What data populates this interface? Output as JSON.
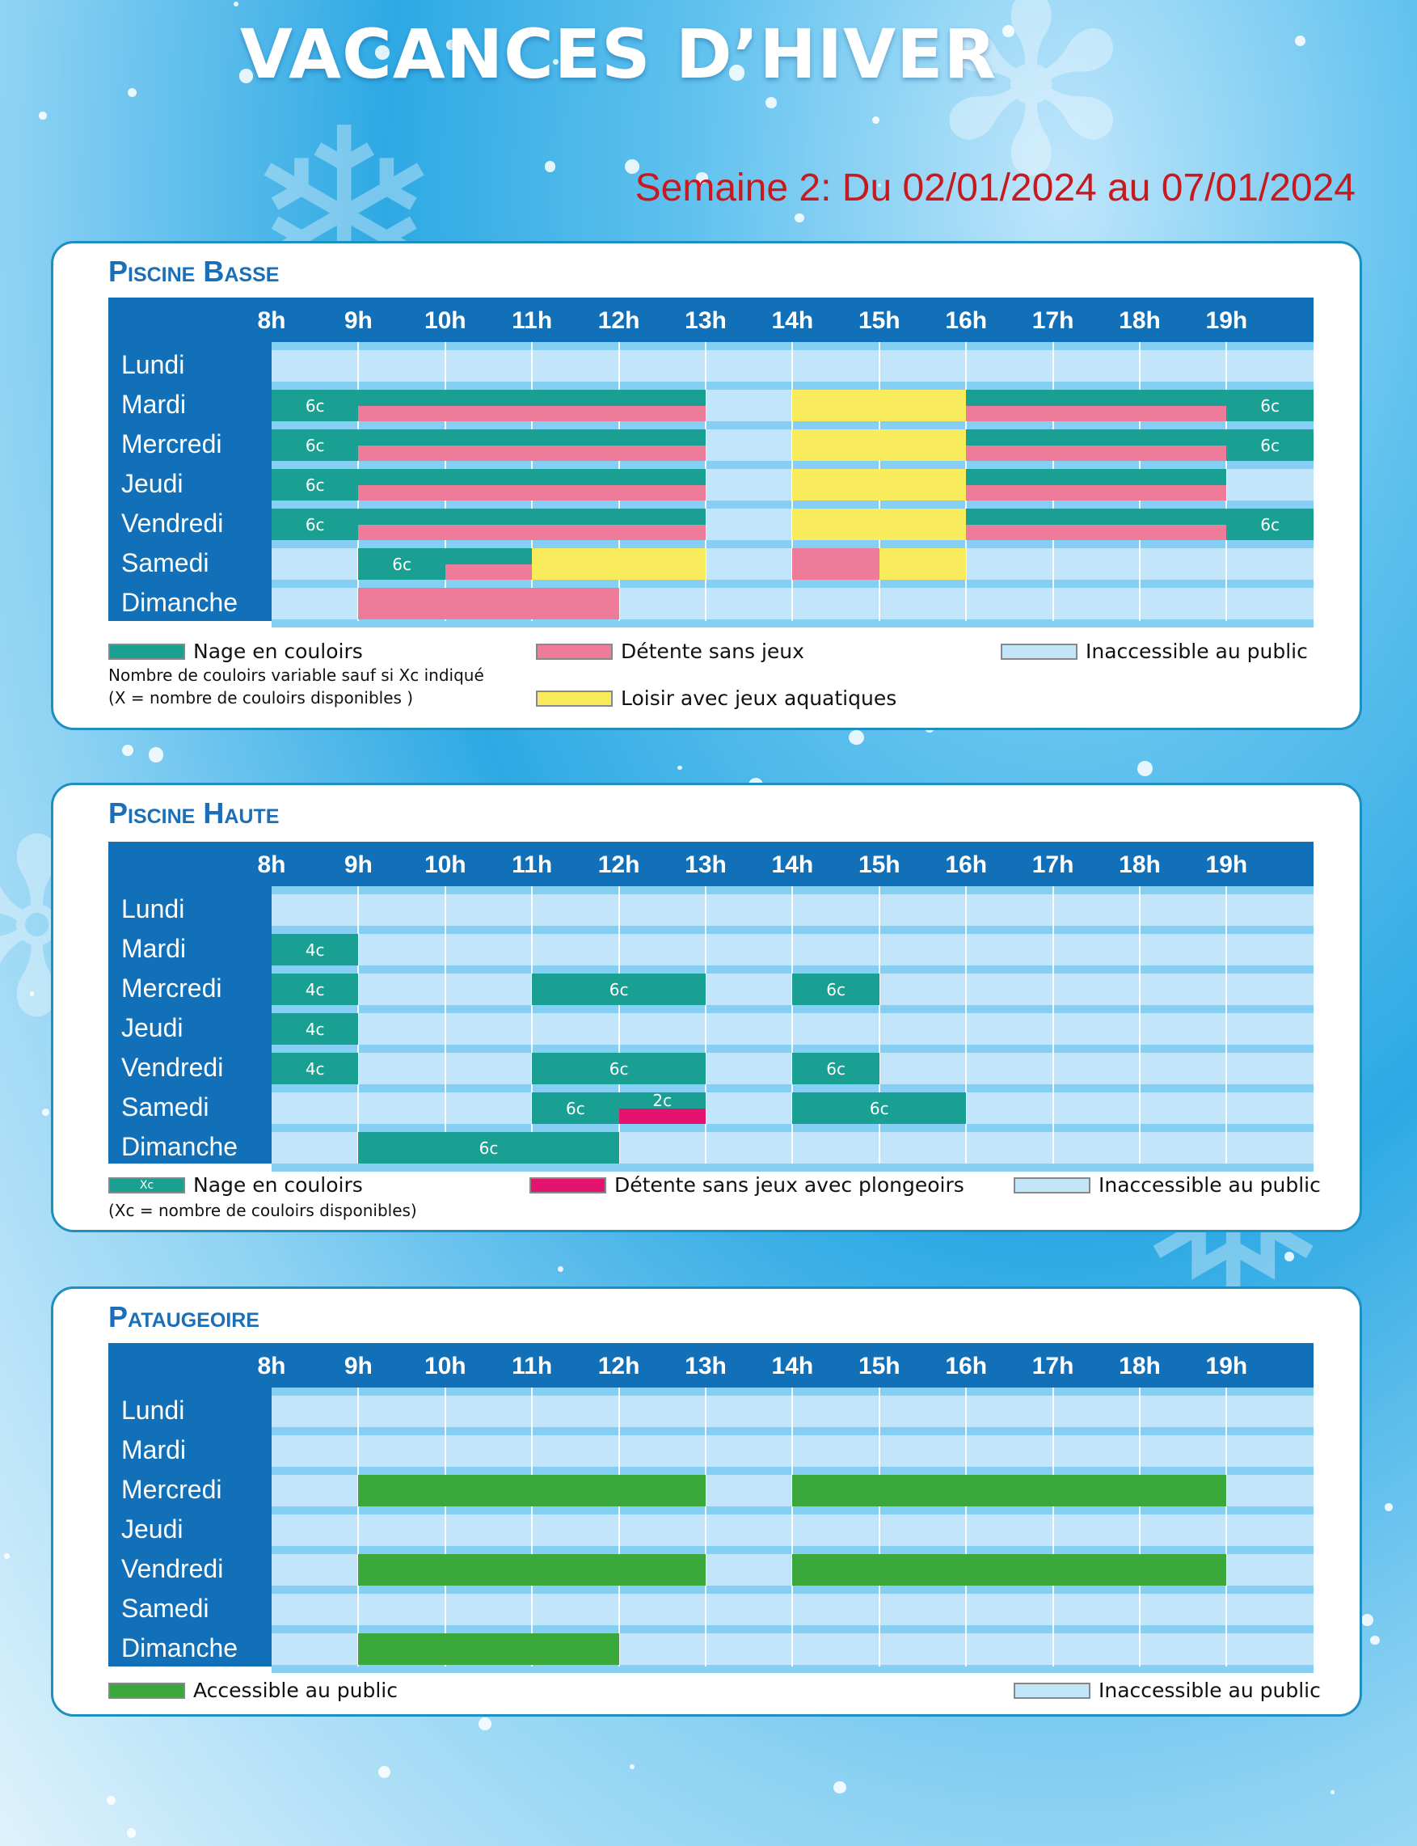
{
  "title": "VACANCES D’HIVER",
  "subtitle": "Semaine 2: Du 02/01/2024 au 07/01/2024",
  "hours": [
    "8h",
    "9h",
    "10h",
    "11h",
    "12h",
    "13h",
    "14h",
    "15h",
    "16h",
    "17h",
    "18h",
    "19h"
  ],
  "days": [
    "Lundi",
    "Mardi",
    "Mercredi",
    "Jeudi",
    "Vendredi",
    "Samedi",
    "Dimanche"
  ],
  "colors": {
    "nage": "#19a093",
    "detente": "#ef7b9a",
    "loisir": "#f8ec5c",
    "plongeoirs": "#e3136e",
    "accessible": "#3aa83a",
    "inaccessible": "#c3e5fa"
  },
  "pools": [
    {
      "name": "Piscine Basse",
      "schedule": [
        [],
        [
          {
            "s": 8,
            "e": 9,
            "t": "nage",
            "l": "6c"
          },
          {
            "s": 9,
            "e": 13,
            "t": "nage",
            "h": "top"
          },
          {
            "s": 9,
            "e": 13,
            "t": "detente",
            "h": "bottom"
          },
          {
            "s": 14,
            "e": 16,
            "t": "loisir"
          },
          {
            "s": 16,
            "e": 19,
            "t": "nage",
            "h": "top"
          },
          {
            "s": 16,
            "e": 19,
            "t": "detente",
            "h": "bottom"
          },
          {
            "s": 19,
            "e": 20,
            "t": "nage",
            "l": "6c"
          }
        ],
        [
          {
            "s": 8,
            "e": 9,
            "t": "nage",
            "l": "6c"
          },
          {
            "s": 9,
            "e": 13,
            "t": "nage",
            "h": "top"
          },
          {
            "s": 9,
            "e": 13,
            "t": "detente",
            "h": "bottom"
          },
          {
            "s": 14,
            "e": 16,
            "t": "loisir"
          },
          {
            "s": 16,
            "e": 19,
            "t": "nage",
            "h": "top"
          },
          {
            "s": 16,
            "e": 19,
            "t": "detente",
            "h": "bottom"
          },
          {
            "s": 19,
            "e": 20,
            "t": "nage",
            "l": "6c"
          }
        ],
        [
          {
            "s": 8,
            "e": 9,
            "t": "nage",
            "l": "6c"
          },
          {
            "s": 9,
            "e": 13,
            "t": "nage",
            "h": "top"
          },
          {
            "s": 9,
            "e": 13,
            "t": "detente",
            "h": "bottom"
          },
          {
            "s": 14,
            "e": 16,
            "t": "loisir"
          },
          {
            "s": 16,
            "e": 19,
            "t": "nage",
            "h": "top"
          },
          {
            "s": 16,
            "e": 19,
            "t": "detente",
            "h": "bottom"
          }
        ],
        [
          {
            "s": 8,
            "e": 9,
            "t": "nage",
            "l": "6c"
          },
          {
            "s": 9,
            "e": 13,
            "t": "nage",
            "h": "top"
          },
          {
            "s": 9,
            "e": 13,
            "t": "detente",
            "h": "bottom"
          },
          {
            "s": 14,
            "e": 16,
            "t": "loisir"
          },
          {
            "s": 16,
            "e": 19,
            "t": "nage",
            "h": "top"
          },
          {
            "s": 16,
            "e": 19,
            "t": "detente",
            "h": "bottom"
          },
          {
            "s": 19,
            "e": 20,
            "t": "nage",
            "l": "6c"
          }
        ],
        [
          {
            "s": 9,
            "e": 10,
            "t": "nage",
            "l": "6c"
          },
          {
            "s": 10,
            "e": 11,
            "t": "nage",
            "h": "top"
          },
          {
            "s": 10,
            "e": 11,
            "t": "detente",
            "h": "bottom"
          },
          {
            "s": 11,
            "e": 13,
            "t": "loisir"
          },
          {
            "s": 14,
            "e": 15,
            "t": "detente"
          },
          {
            "s": 15,
            "e": 16,
            "t": "loisir"
          }
        ],
        [
          {
            "s": 9,
            "e": 12,
            "t": "detente"
          }
        ]
      ],
      "legend": {
        "nage": "Nage en couloirs",
        "note1": "Nombre de couloirs variable sauf si Xc indiqué",
        "note2": "(X = nombre de couloirs disponibles )",
        "detente": "Détente sans jeux",
        "loisir": "Loisir avec jeux aquatiques",
        "inaccessible": "Inaccessible au public"
      }
    },
    {
      "name": "Piscine Haute",
      "schedule": [
        [],
        [
          {
            "s": 8,
            "e": 9,
            "t": "nage",
            "l": "4c"
          }
        ],
        [
          {
            "s": 8,
            "e": 9,
            "t": "nage",
            "l": "4c"
          },
          {
            "s": 11,
            "e": 13,
            "t": "nage",
            "l": "6c"
          },
          {
            "s": 14,
            "e": 15,
            "t": "nage",
            "l": "6c"
          }
        ],
        [
          {
            "s": 8,
            "e": 9,
            "t": "nage",
            "l": "4c"
          }
        ],
        [
          {
            "s": 8,
            "e": 9,
            "t": "nage",
            "l": "4c"
          },
          {
            "s": 11,
            "e": 13,
            "t": "nage",
            "l": "6c"
          },
          {
            "s": 14,
            "e": 15,
            "t": "nage",
            "l": "6c"
          }
        ],
        [
          {
            "s": 11,
            "e": 12,
            "t": "nage",
            "l": "6c"
          },
          {
            "s": 12,
            "e": 13,
            "t": "nage",
            "h": "top",
            "l": "2c"
          },
          {
            "s": 12,
            "e": 13,
            "t": "plongeoirs",
            "h": "bottom"
          },
          {
            "s": 14,
            "e": 16,
            "t": "nage",
            "l": "6c"
          }
        ],
        [
          {
            "s": 9,
            "e": 12,
            "t": "nage",
            "l": "6c"
          }
        ]
      ],
      "legend": {
        "swatch_label": "Xc",
        "nage": "Nage en couloirs",
        "note1": "(Xc = nombre de couloirs disponibles)",
        "plongeoirs": "Détente sans jeux avec plongeoirs",
        "inaccessible": "Inaccessible au public"
      }
    },
    {
      "name": "Pataugeoire",
      "schedule": [
        [],
        [],
        [
          {
            "s": 9,
            "e": 13,
            "t": "accessible"
          },
          {
            "s": 14,
            "e": 19,
            "t": "accessible"
          }
        ],
        [],
        [
          {
            "s": 9,
            "e": 13,
            "t": "accessible"
          },
          {
            "s": 14,
            "e": 19,
            "t": "accessible"
          }
        ],
        [],
        [
          {
            "s": 9,
            "e": 12,
            "t": "accessible"
          }
        ]
      ],
      "legend": {
        "accessible": "Accessible au public",
        "inaccessible": "Inaccessible au public"
      }
    }
  ]
}
